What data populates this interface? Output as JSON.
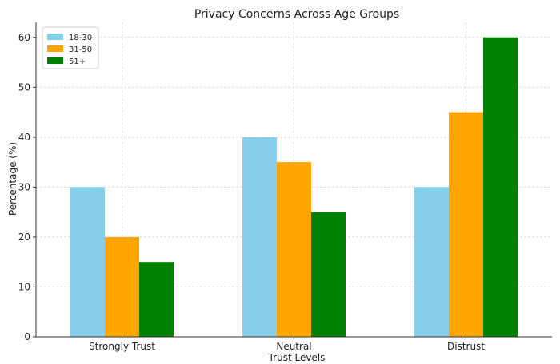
{
  "chart_data": {
    "type": "bar",
    "title": "Privacy Concerns Across Age Groups",
    "xlabel": "Trust Levels",
    "ylabel": "Percentage (%)",
    "categories": [
      "Strongly Trust",
      "Neutral",
      "Distrust"
    ],
    "series": [
      {
        "name": "18-30",
        "color": "#87ceeb",
        "values": [
          30,
          40,
          30
        ]
      },
      {
        "name": "31-50",
        "color": "#ffa500",
        "values": [
          20,
          35,
          45
        ]
      },
      {
        "name": "51+",
        "color": "#008000",
        "values": [
          15,
          25,
          60
        ]
      }
    ],
    "ylim": [
      0,
      63
    ],
    "yticks": [
      0,
      10,
      20,
      30,
      40,
      50,
      60
    ],
    "grid": true,
    "legend_position": "top-left"
  }
}
